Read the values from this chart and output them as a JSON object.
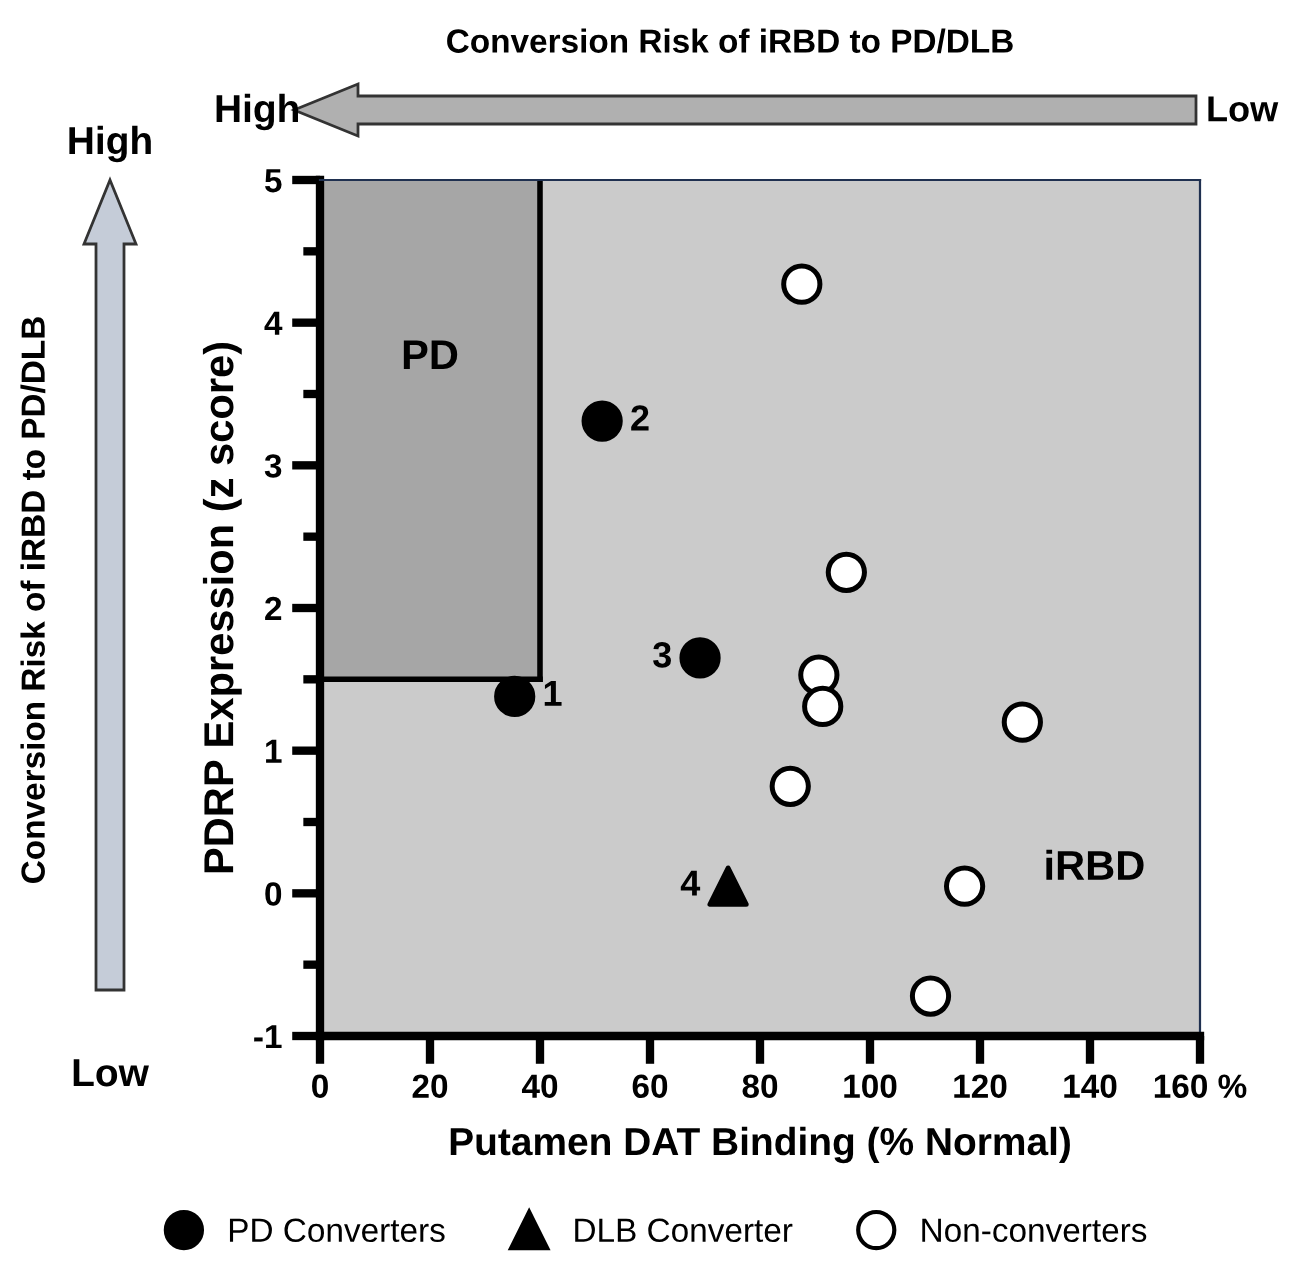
{
  "chart_data": {
    "type": "scatter",
    "xlabel": "Putamen DAT Binding (% Normal)",
    "ylabel": "PDRP Expression (z score)",
    "xlim": [
      0,
      160
    ],
    "ylim": [
      -1,
      5
    ],
    "xticks": [
      0,
      20,
      40,
      60,
      80,
      100,
      120,
      140,
      {
        "value": 160,
        "label": "160 %"
      }
    ],
    "yticks": [
      -1,
      0,
      1,
      2,
      3,
      4,
      5
    ],
    "grid": false,
    "legend": "bottom",
    "series": [
      {
        "name": "PD Converters",
        "color": "#000000",
        "marker": "circle",
        "x": [
          35.4,
          51.3,
          69.1
        ],
        "values": [
          1.38,
          3.31,
          1.65
        ]
      },
      {
        "name": "DLB Converter",
        "color": "#000000",
        "marker": "triangle",
        "x": [
          74.2
        ],
        "values": [
          0.05
        ]
      },
      {
        "name": "Non-converters",
        "color": "#ffffff",
        "marker": "circle",
        "x": [
          87.6,
          95.7,
          90.7,
          91.4,
          127.7,
          85.5,
          117.2,
          111.0
        ],
        "values": [
          4.27,
          2.25,
          1.53,
          1.31,
          1.2,
          0.75,
          0.05,
          -0.72
        ]
      }
    ],
    "ref_lines": [
      {
        "axis": "x",
        "value": 40,
        "color": "#000000"
      },
      {
        "axis": "y",
        "value": 1.5,
        "color": "#000000"
      }
    ],
    "bands": [
      {
        "axis": "x",
        "from": 0,
        "to": 40,
        "label": "PD",
        "color": "#a6a6a6"
      }
    ],
    "annotations": [
      {
        "text": "1",
        "x": 35.4,
        "y": 1.38
      },
      {
        "text": "2",
        "x": 51.3,
        "y": 3.31
      },
      {
        "text": "3",
        "x": 69.1,
        "y": 1.65
      },
      {
        "text": "4",
        "x": 74.2,
        "y": 0.05
      },
      "iRBD",
      "Conversion Risk of iRBD to PD/DLB",
      "High",
      "Low",
      "Conversion Risk of iRBD to PD/DLB",
      "High",
      "Low"
    ]
  }
}
